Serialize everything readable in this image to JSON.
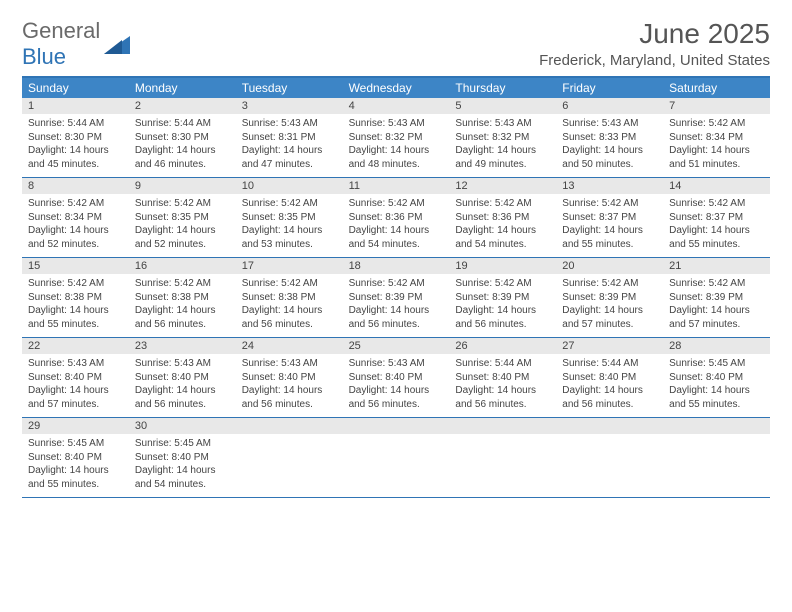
{
  "logo": {
    "text1": "General",
    "text2": "Blue"
  },
  "title": "June 2025",
  "subtitle": "Frederick, Maryland, United States",
  "colors": {
    "header_bar": "#3d85c6",
    "border": "#2f74b5",
    "daynum_bg": "#e8e8e8",
    "text": "#444444"
  },
  "dow": [
    "Sunday",
    "Monday",
    "Tuesday",
    "Wednesday",
    "Thursday",
    "Friday",
    "Saturday"
  ],
  "weeks": [
    [
      {
        "n": "1",
        "sr": "5:44 AM",
        "ss": "8:30 PM",
        "dl": "14 hours and 45 minutes."
      },
      {
        "n": "2",
        "sr": "5:44 AM",
        "ss": "8:30 PM",
        "dl": "14 hours and 46 minutes."
      },
      {
        "n": "3",
        "sr": "5:43 AM",
        "ss": "8:31 PM",
        "dl": "14 hours and 47 minutes."
      },
      {
        "n": "4",
        "sr": "5:43 AM",
        "ss": "8:32 PM",
        "dl": "14 hours and 48 minutes."
      },
      {
        "n": "5",
        "sr": "5:43 AM",
        "ss": "8:32 PM",
        "dl": "14 hours and 49 minutes."
      },
      {
        "n": "6",
        "sr": "5:43 AM",
        "ss": "8:33 PM",
        "dl": "14 hours and 50 minutes."
      },
      {
        "n": "7",
        "sr": "5:42 AM",
        "ss": "8:34 PM",
        "dl": "14 hours and 51 minutes."
      }
    ],
    [
      {
        "n": "8",
        "sr": "5:42 AM",
        "ss": "8:34 PM",
        "dl": "14 hours and 52 minutes."
      },
      {
        "n": "9",
        "sr": "5:42 AM",
        "ss": "8:35 PM",
        "dl": "14 hours and 52 minutes."
      },
      {
        "n": "10",
        "sr": "5:42 AM",
        "ss": "8:35 PM",
        "dl": "14 hours and 53 minutes."
      },
      {
        "n": "11",
        "sr": "5:42 AM",
        "ss": "8:36 PM",
        "dl": "14 hours and 54 minutes."
      },
      {
        "n": "12",
        "sr": "5:42 AM",
        "ss": "8:36 PM",
        "dl": "14 hours and 54 minutes."
      },
      {
        "n": "13",
        "sr": "5:42 AM",
        "ss": "8:37 PM",
        "dl": "14 hours and 55 minutes."
      },
      {
        "n": "14",
        "sr": "5:42 AM",
        "ss": "8:37 PM",
        "dl": "14 hours and 55 minutes."
      }
    ],
    [
      {
        "n": "15",
        "sr": "5:42 AM",
        "ss": "8:38 PM",
        "dl": "14 hours and 55 minutes."
      },
      {
        "n": "16",
        "sr": "5:42 AM",
        "ss": "8:38 PM",
        "dl": "14 hours and 56 minutes."
      },
      {
        "n": "17",
        "sr": "5:42 AM",
        "ss": "8:38 PM",
        "dl": "14 hours and 56 minutes."
      },
      {
        "n": "18",
        "sr": "5:42 AM",
        "ss": "8:39 PM",
        "dl": "14 hours and 56 minutes."
      },
      {
        "n": "19",
        "sr": "5:42 AM",
        "ss": "8:39 PM",
        "dl": "14 hours and 56 minutes."
      },
      {
        "n": "20",
        "sr": "5:42 AM",
        "ss": "8:39 PM",
        "dl": "14 hours and 57 minutes."
      },
      {
        "n": "21",
        "sr": "5:42 AM",
        "ss": "8:39 PM",
        "dl": "14 hours and 57 minutes."
      }
    ],
    [
      {
        "n": "22",
        "sr": "5:43 AM",
        "ss": "8:40 PM",
        "dl": "14 hours and 57 minutes."
      },
      {
        "n": "23",
        "sr": "5:43 AM",
        "ss": "8:40 PM",
        "dl": "14 hours and 56 minutes."
      },
      {
        "n": "24",
        "sr": "5:43 AM",
        "ss": "8:40 PM",
        "dl": "14 hours and 56 minutes."
      },
      {
        "n": "25",
        "sr": "5:43 AM",
        "ss": "8:40 PM",
        "dl": "14 hours and 56 minutes."
      },
      {
        "n": "26",
        "sr": "5:44 AM",
        "ss": "8:40 PM",
        "dl": "14 hours and 56 minutes."
      },
      {
        "n": "27",
        "sr": "5:44 AM",
        "ss": "8:40 PM",
        "dl": "14 hours and 56 minutes."
      },
      {
        "n": "28",
        "sr": "5:45 AM",
        "ss": "8:40 PM",
        "dl": "14 hours and 55 minutes."
      }
    ],
    [
      {
        "n": "29",
        "sr": "5:45 AM",
        "ss": "8:40 PM",
        "dl": "14 hours and 55 minutes."
      },
      {
        "n": "30",
        "sr": "5:45 AM",
        "ss": "8:40 PM",
        "dl": "14 hours and 54 minutes."
      },
      null,
      null,
      null,
      null,
      null
    ]
  ],
  "labels": {
    "sunrise": "Sunrise:",
    "sunset": "Sunset:",
    "daylight": "Daylight:"
  }
}
